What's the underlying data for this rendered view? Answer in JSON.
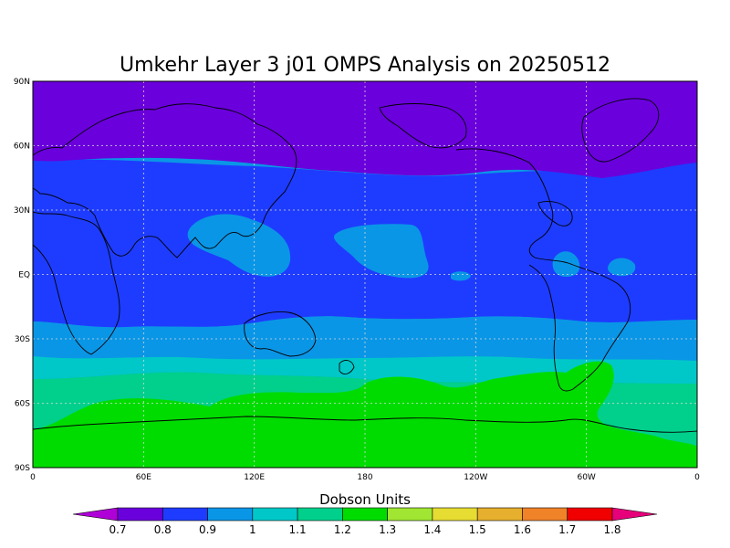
{
  "title": "Umkehr Layer 3 j01 OMPS Analysis on 20250512",
  "units_label": "Dobson Units",
  "lat_ticks": [
    "90N",
    "60N",
    "30N",
    "EQ",
    "30S",
    "60S",
    "90S"
  ],
  "lon_ticks": [
    "0",
    "60E",
    "120E",
    "180",
    "120W",
    "60W",
    "0"
  ],
  "colorbar": {
    "levels": [
      "0.7",
      "0.8",
      "0.9",
      "1",
      "1.1",
      "1.2",
      "1.3",
      "1.4",
      "1.5",
      "1.6",
      "1.7",
      "1.8"
    ],
    "colors": [
      "#b000d8",
      "#6a00dc",
      "#1e3cff",
      "#0a96e6",
      "#00c8c8",
      "#00d08c",
      "#00dc00",
      "#a0e632",
      "#e6dc32",
      "#e6af2d",
      "#f08228",
      "#f00000",
      "#e6007a"
    ]
  },
  "field_colors": {
    "band_0_7_0_8": "#6a00dc",
    "band_0_8_0_9": "#1e3cff",
    "band_0_9_1_0": "#0a96e6",
    "band_1_0_1_1": "#00c8c8",
    "band_1_1_1_2": "#00d08c",
    "band_1_2_1_3": "#00dc00",
    "grid": "#d8d8d8",
    "coast": "#000000"
  }
}
